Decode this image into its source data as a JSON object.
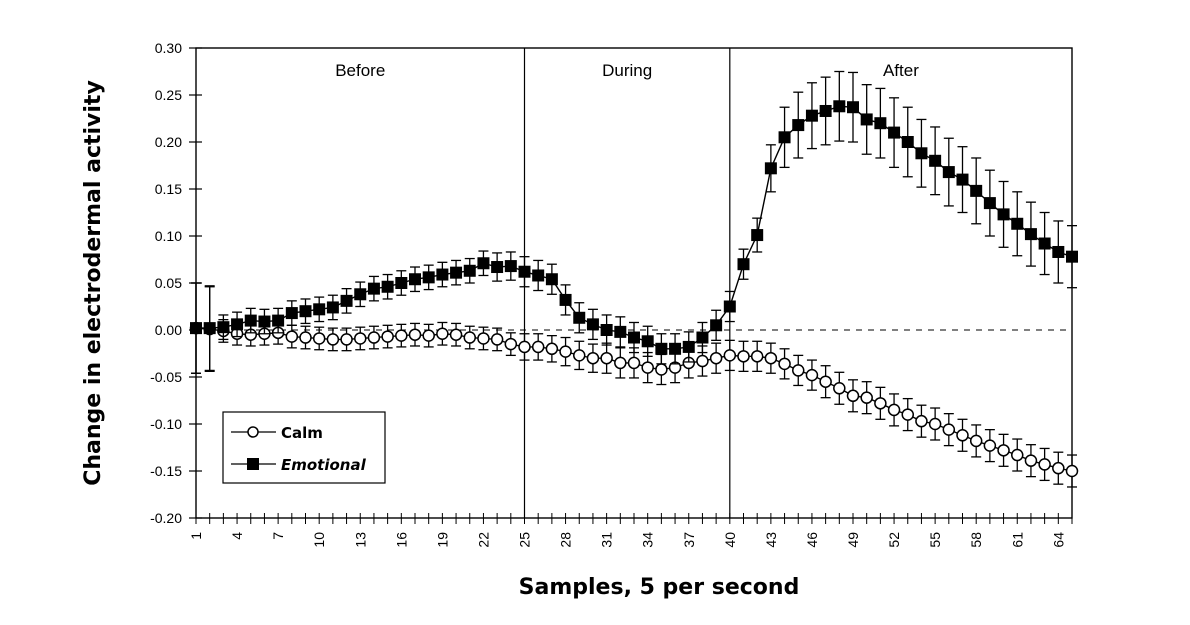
{
  "chart_data": {
    "type": "line",
    "title": "",
    "xlabel": "Samples, 5 per second",
    "ylabel": "Change in electrodermal activity",
    "xlim": [
      1,
      65
    ],
    "ylim": [
      -0.2,
      0.3
    ],
    "y_ticks": [
      "0.30",
      "0.25",
      "0.20",
      "0.15",
      "0.10",
      "0.05",
      "0.00",
      "-0.05",
      "-0.10",
      "-0.15",
      "-0.20"
    ],
    "y_tick_values": [
      0.3,
      0.25,
      0.2,
      0.15,
      0.1,
      0.05,
      0.0,
      -0.05,
      -0.1,
      -0.15,
      -0.2
    ],
    "x_tick_labels": [
      "1",
      "4",
      "7",
      "10",
      "13",
      "16",
      "19",
      "22",
      "25",
      "28",
      "31",
      "34",
      "37",
      "40",
      "43",
      "46",
      "49",
      "52",
      "55",
      "58",
      "61",
      "64"
    ],
    "phases": [
      {
        "label": "Before",
        "start": 1,
        "end": 25
      },
      {
        "label": "During",
        "start": 25,
        "end": 40
      },
      {
        "label": "After",
        "start": 40,
        "end": 65
      }
    ],
    "reference_line": 0.0,
    "legend_position": "bottom-left",
    "series": [
      {
        "name": "Calm",
        "marker": "open-circle",
        "values": [
          0.002,
          0.001,
          -0.001,
          -0.004,
          -0.005,
          -0.004,
          -0.003,
          -0.007,
          -0.008,
          -0.009,
          -0.01,
          -0.01,
          -0.009,
          -0.008,
          -0.007,
          -0.006,
          -0.005,
          -0.006,
          -0.004,
          -0.005,
          -0.008,
          -0.009,
          -0.01,
          -0.015,
          -0.018,
          -0.018,
          -0.02,
          -0.023,
          -0.027,
          -0.03,
          -0.03,
          -0.035,
          -0.035,
          -0.04,
          -0.042,
          -0.04,
          -0.035,
          -0.033,
          -0.03,
          -0.027,
          -0.028,
          -0.028,
          -0.03,
          -0.036,
          -0.043,
          -0.048,
          -0.055,
          -0.062,
          -0.07,
          -0.072,
          -0.078,
          -0.085,
          -0.09,
          -0.097,
          -0.1,
          -0.106,
          -0.112,
          -0.118,
          -0.123,
          -0.128,
          -0.133,
          -0.139,
          -0.143,
          -0.147,
          -0.15
        ],
        "errors": [
          0.048,
          0.045,
          0.012,
          0.012,
          0.012,
          0.012,
          0.012,
          0.012,
          0.012,
          0.012,
          0.012,
          0.012,
          0.012,
          0.012,
          0.012,
          0.012,
          0.012,
          0.012,
          0.012,
          0.012,
          0.012,
          0.012,
          0.012,
          0.012,
          0.014,
          0.014,
          0.014,
          0.015,
          0.015,
          0.015,
          0.016,
          0.016,
          0.016,
          0.016,
          0.016,
          0.016,
          0.016,
          0.016,
          0.016,
          0.016,
          0.016,
          0.016,
          0.016,
          0.016,
          0.016,
          0.016,
          0.017,
          0.017,
          0.017,
          0.017,
          0.017,
          0.017,
          0.017,
          0.017,
          0.017,
          0.017,
          0.017,
          0.017,
          0.017,
          0.017,
          0.017,
          0.017,
          0.017,
          0.017,
          0.017
        ]
      },
      {
        "name": "Emotional",
        "marker": "filled-square",
        "values": [
          0.002,
          0.002,
          0.003,
          0.006,
          0.01,
          0.009,
          0.01,
          0.018,
          0.02,
          0.022,
          0.024,
          0.031,
          0.038,
          0.044,
          0.046,
          0.05,
          0.054,
          0.056,
          0.059,
          0.061,
          0.063,
          0.071,
          0.067,
          0.068,
          0.062,
          0.058,
          0.054,
          0.032,
          0.013,
          0.006,
          0.0,
          -0.002,
          -0.008,
          -0.012,
          -0.02,
          -0.02,
          -0.018,
          -0.008,
          0.005,
          0.025,
          0.07,
          0.101,
          0.172,
          0.205,
          0.218,
          0.228,
          0.233,
          0.238,
          0.237,
          0.224,
          0.22,
          0.21,
          0.2,
          0.188,
          0.18,
          0.168,
          0.16,
          0.148,
          0.135,
          0.123,
          0.113,
          0.102,
          0.092,
          0.083,
          0.078
        ],
        "errors": [
          0.048,
          0.045,
          0.013,
          0.013,
          0.013,
          0.013,
          0.013,
          0.013,
          0.013,
          0.013,
          0.013,
          0.013,
          0.013,
          0.013,
          0.013,
          0.013,
          0.013,
          0.013,
          0.013,
          0.013,
          0.013,
          0.013,
          0.015,
          0.015,
          0.016,
          0.016,
          0.016,
          0.016,
          0.016,
          0.016,
          0.016,
          0.016,
          0.016,
          0.016,
          0.016,
          0.016,
          0.016,
          0.016,
          0.016,
          0.016,
          0.016,
          0.018,
          0.025,
          0.032,
          0.035,
          0.035,
          0.036,
          0.037,
          0.037,
          0.037,
          0.037,
          0.037,
          0.037,
          0.036,
          0.036,
          0.036,
          0.035,
          0.035,
          0.035,
          0.035,
          0.034,
          0.034,
          0.033,
          0.033,
          0.033
        ]
      }
    ]
  }
}
